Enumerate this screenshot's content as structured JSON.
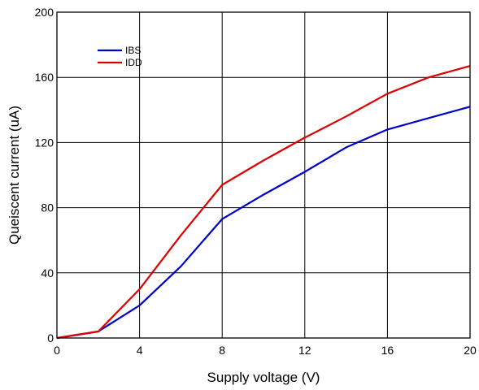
{
  "chart_data": {
    "type": "line",
    "title": "",
    "xlabel": "Supply voltage (V)",
    "ylabel": "Queiscent current (uA)",
    "xlim": [
      0,
      20
    ],
    "ylim": [
      0,
      200
    ],
    "xticks": [
      0,
      4,
      8,
      12,
      16,
      20
    ],
    "yticks": [
      0,
      40,
      80,
      120,
      160,
      200
    ],
    "xtick_labels": [
      "0",
      "4",
      "8",
      "12",
      "16",
      "20"
    ],
    "ytick_labels": [
      "0",
      "40",
      "80",
      "120",
      "160",
      "200"
    ],
    "grid": true,
    "legend_position": "top-left",
    "series": [
      {
        "name": "IBS",
        "color": "#0000cc",
        "x": [
          0,
          2,
          4,
          6,
          8,
          10,
          12,
          14,
          16,
          18,
          20
        ],
        "y": [
          0,
          4,
          20,
          44,
          73,
          88,
          102,
          117,
          128,
          135,
          142
        ]
      },
      {
        "name": "IDD",
        "color": "#dd0000",
        "x": [
          0,
          2,
          4,
          6,
          8,
          10,
          12,
          14,
          16,
          18,
          20
        ],
        "y": [
          0,
          4,
          30,
          63,
          94,
          109,
          123,
          136,
          150,
          160,
          167
        ]
      }
    ]
  }
}
